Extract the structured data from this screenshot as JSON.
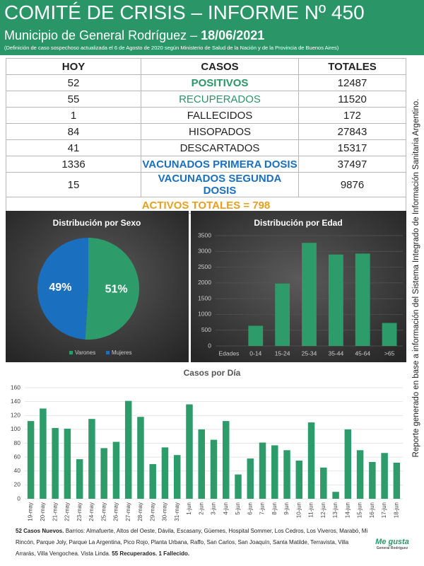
{
  "header": {
    "title": "COMITÉ DE CRISIS – INFORME Nº 450",
    "subtitle": "Municipio de General Rodríguez – ",
    "date": "18/06/2021",
    "note": "(Definición de caso sospechoso actualizada el 6 de Agosto de 2020 según Ministerio de Salud de la Nación y de la Provincia de Buenos Aires)"
  },
  "table": {
    "columns": [
      "HOY",
      "CASOS",
      "TOTALES"
    ],
    "rows": [
      [
        "52",
        "POSITIVOS",
        "12487"
      ],
      [
        "55",
        "RECUPERADOS",
        "11520"
      ],
      [
        "1",
        "FALLECIDOS",
        "172"
      ],
      [
        "84",
        "HISOPADOS",
        "27843"
      ],
      [
        "41",
        "DESCARTADOS",
        "15317"
      ],
      [
        "1336",
        "VACUNADOS PRIMERA DOSIS",
        "37497"
      ],
      [
        "15",
        "VACUNADOS SEGUNDA DOSIS",
        "9876"
      ]
    ],
    "footer": "ACTIVOS TOTALES = 798"
  },
  "side_note": "Reporte generado en base a información del Sistema Integrado de Información Sanitaria Argentino.",
  "chart_data": [
    {
      "type": "pie",
      "title": "Distribución por Sexo",
      "categories": [
        "Varones",
        "Mujeres"
      ],
      "values": [
        51,
        49
      ],
      "value_labels": [
        "51%",
        "49%"
      ],
      "colors": [
        "#2e9b6a",
        "#1a6fbf"
      ],
      "legend": "bottom"
    },
    {
      "type": "bar",
      "title": "Distribución por Edad",
      "xlabel": "Edades",
      "categories": [
        "0-14",
        "15-24",
        "25-34",
        "35-44",
        "45-64",
        ">65"
      ],
      "values": [
        640,
        1980,
        3270,
        2900,
        2930,
        730
      ],
      "color": "#2e9b6a",
      "ylim": [
        0,
        3500
      ],
      "yticks": [
        0,
        500,
        1000,
        1500,
        2000,
        2500,
        3000,
        3500
      ],
      "grid": true
    },
    {
      "type": "bar",
      "title": "Casos por Día",
      "categories": [
        "19-may",
        "20-may",
        "21-may",
        "22-may",
        "23-may",
        "24-may",
        "25-may",
        "26-may",
        "27-may",
        "28-may",
        "29-may",
        "30-may",
        "31-may",
        "1-jun",
        "2-jun",
        "3-jun",
        "4-jun",
        "5-jun",
        "6-jun",
        "7-jun",
        "8-jun",
        "9-jun",
        "10-jun",
        "11-jun",
        "12-jun",
        "13-jun",
        "14-jun",
        "15-jun",
        "16-jun",
        "17-jun",
        "18-jun"
      ],
      "values": [
        112,
        130,
        102,
        101,
        57,
        115,
        73,
        82,
        141,
        118,
        50,
        74,
        63,
        136,
        100,
        85,
        112,
        35,
        58,
        81,
        77,
        70,
        55,
        110,
        45,
        10,
        100,
        70,
        53,
        66,
        52
      ],
      "color": "#2e9b6a",
      "ylim": [
        0,
        160
      ],
      "yticks": [
        0,
        20,
        40,
        60,
        80,
        100,
        120,
        140,
        160
      ],
      "grid": true
    }
  ],
  "footer": {
    "new_cases": "52 Casos Nuevos.",
    "barrios": " Barrios: Almafuerte, Altos del Oeste, Dávila, Escasany, Güemes, Hospital Sommer, Los Cedros, Los Viveros, Marabó, Mi Rincón, Parque Joly, Parque La Argentina, Pico Rojo, Planta Urbana, Raffo, San Carlos, San Joaquín, Santa Matilde, Terravista, Villa Arrarás, Villa Vengochea. Vista Linda. ",
    "recovered": "55 Recuperados.",
    "deaths": " 1 Fallecido.",
    "logo": "Me gusta",
    "logo_sub": "General Rodríguez"
  }
}
